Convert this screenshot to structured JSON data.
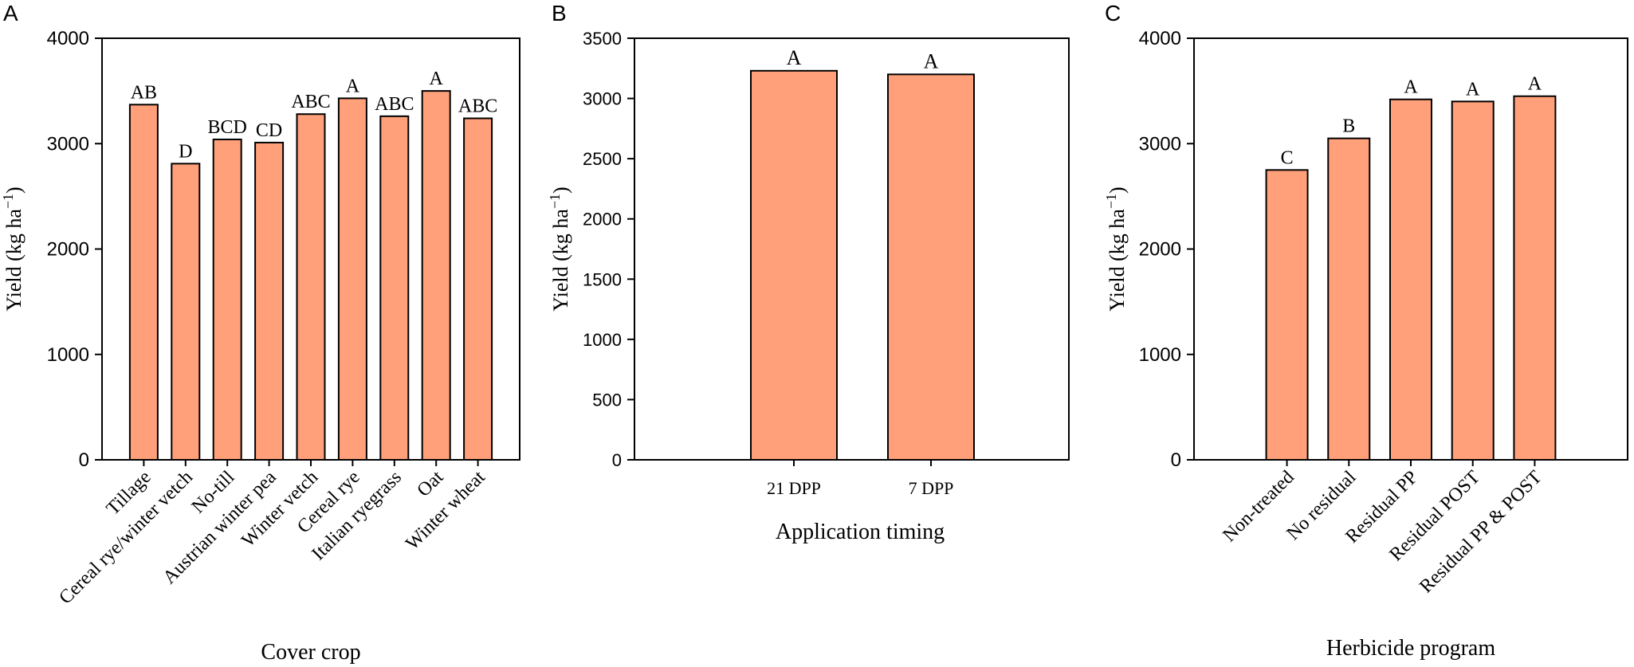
{
  "chart_data": [
    {
      "type": "bar",
      "panel": "A",
      "categories": [
        "Tillage",
        "Cereal rye/winter vetch",
        "No-till",
        "Austrian winter pea",
        "Winter vetch",
        "Cereal rye",
        "Italian ryegrass",
        "Oat",
        "Winter wheat"
      ],
      "values": [
        3370,
        2810,
        3040,
        3010,
        3280,
        3430,
        3260,
        3500,
        3240
      ],
      "letters": [
        "AB",
        "D",
        "BCD",
        "CD",
        "ABC",
        "A",
        "ABC",
        "A",
        "ABC"
      ],
      "xlabel": "Cover crop",
      "ylabel": "Yield (kg ha",
      "ylabel_sup": "−1",
      "ylabel_end": ")",
      "ylim": [
        0,
        4000
      ],
      "yticks": [
        "0",
        "1000",
        "2000",
        "3000",
        "4000"
      ],
      "bar_color": "#FFA07A",
      "grid": false
    },
    {
      "type": "bar",
      "panel": "B",
      "categories": [
        "21 DPP",
        "7 DPP"
      ],
      "values": [
        3230,
        3200
      ],
      "letters": [
        "A",
        "A"
      ],
      "xlabel": "Application timing",
      "ylabel": "Yield (kg ha",
      "ylabel_sup": "−1",
      "ylabel_end": ")",
      "ylim": [
        0,
        3500
      ],
      "yticks": [
        "0",
        "500",
        "1000",
        "1500",
        "2000",
        "2500",
        "3000",
        "3500"
      ],
      "bar_color": "#FFA07A",
      "grid": false
    },
    {
      "type": "bar",
      "panel": "C",
      "categories": [
        "Non-treated",
        "No residual",
        "Residual PP",
        "Residual POST",
        "Residual PP & POST"
      ],
      "values": [
        2750,
        3050,
        3420,
        3400,
        3450
      ],
      "letters": [
        "C",
        "B",
        "A",
        "A",
        "A"
      ],
      "xlabel": "Herbicide program",
      "ylabel": "Yield (kg ha",
      "ylabel_sup": "−1",
      "ylabel_end": ")",
      "ylim": [
        0,
        4000
      ],
      "yticks": [
        "0",
        "1000",
        "2000",
        "3000",
        "4000"
      ],
      "bar_color": "#FFA07A",
      "grid": false
    }
  ]
}
